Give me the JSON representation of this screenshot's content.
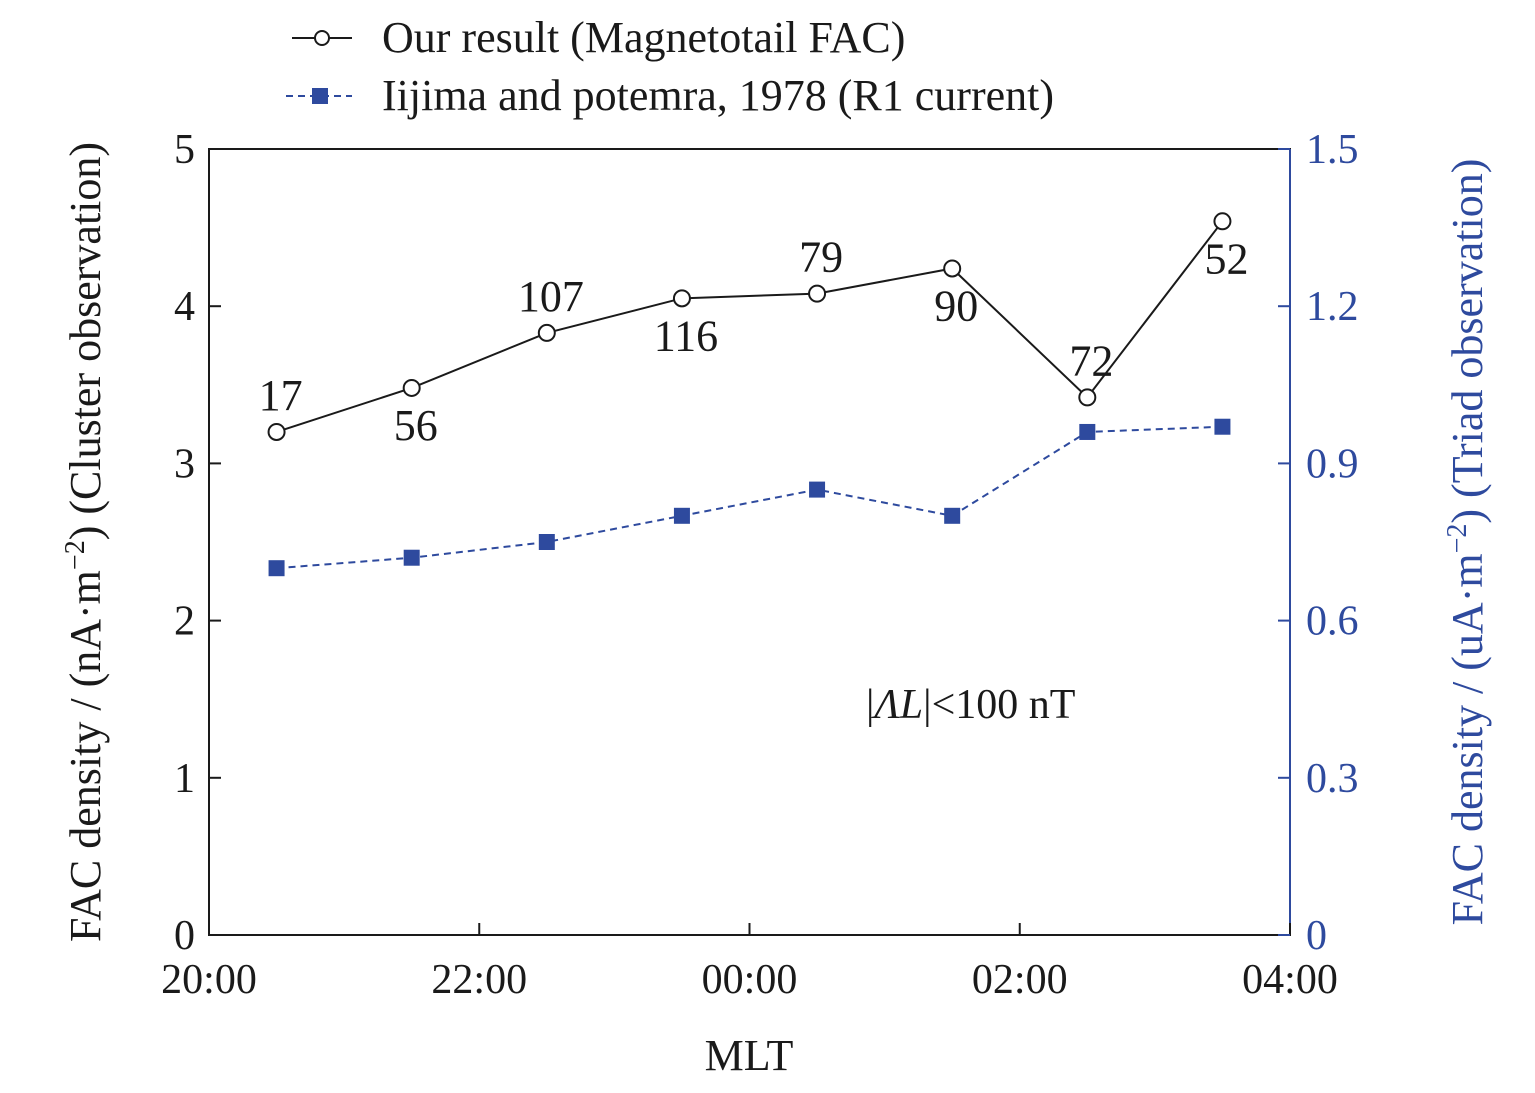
{
  "chart_data": {
    "type": "line",
    "xlabel": "MLT",
    "ylabel_left_prefix": "FAC density / (nA·m",
    "ylabel_left_suffix": ") (Cluster observation)",
    "ylabel_right_prefix": "FAC density / (uA·m",
    "ylabel_right_suffix": ") (Triad observation)",
    "unit_exponent": "−2",
    "x_hours": [
      20,
      22,
      24,
      26,
      28
    ],
    "x_tick_labels": [
      "20:00",
      "22:00",
      "00:00",
      "02:00",
      "04:00"
    ],
    "xlim": [
      20,
      28
    ],
    "y_left_lim": [
      0,
      5
    ],
    "y_left_ticks": [
      0,
      1,
      2,
      3,
      4,
      5
    ],
    "y_left_tick_labels": [
      "0",
      "1",
      "2",
      "3",
      "4",
      "5"
    ],
    "y_right_lim": [
      0,
      1.5
    ],
    "y_right_ticks": [
      0,
      0.3,
      0.6,
      0.9,
      1.2,
      1.5
    ],
    "y_right_tick_labels": [
      "0",
      "0.3",
      "0.6",
      "0.9",
      "1.2",
      "1.5"
    ],
    "series": [
      {
        "name": "Our result (Magnetotail FAC)",
        "axis": "left",
        "color": "#1a1a1a",
        "marker": "open-circle",
        "line_style": "solid",
        "x": [
          20.5,
          21.5,
          22.5,
          23.5,
          24.5,
          25.5,
          26.5,
          27.5
        ],
        "values": [
          3.2,
          3.48,
          3.83,
          4.05,
          4.08,
          4.24,
          3.42,
          4.54
        ],
        "point_labels": [
          "17",
          "56",
          "107",
          "116",
          "79",
          "90",
          "72",
          "52"
        ],
        "label_positions": [
          "above",
          "below",
          "above",
          "below",
          "above",
          "below",
          "above",
          "below"
        ]
      },
      {
        "name": "Iijima and potemra, 1978 (R1 current)",
        "axis": "right",
        "color": "#2e4a9e",
        "marker": "filled-square",
        "line_style": "dashed",
        "x": [
          20.5,
          21.5,
          22.5,
          23.5,
          24.5,
          25.5,
          26.5,
          27.5
        ],
        "values": [
          0.7,
          0.72,
          0.75,
          0.8,
          0.85,
          0.8,
          0.96,
          0.97
        ]
      }
    ],
    "annotation": {
      "bar": "|",
      "delta": "Λ",
      "var": "L",
      "rest": "|<100 nT"
    },
    "legend_position": "top",
    "grid": false
  }
}
